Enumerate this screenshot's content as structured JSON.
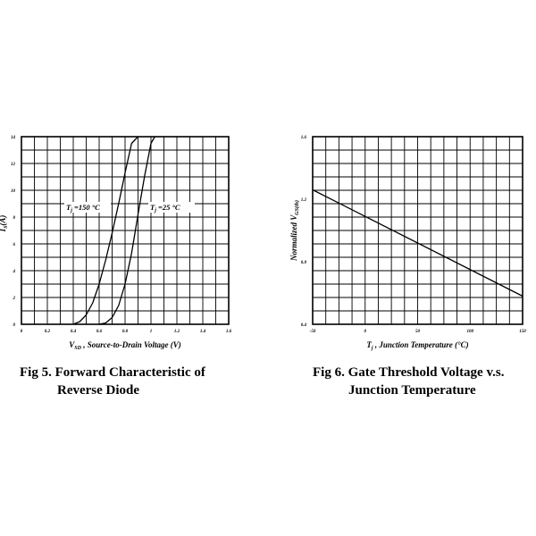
{
  "chart_data": [
    {
      "type": "line",
      "title": "",
      "xlabel": "V",
      "xlabel_sub": "SD",
      "xlabel_rest": " , Source-to-Drain Voltage (V)",
      "ylabel": "I",
      "ylabel_sub": "S",
      "ylabel_rest": "(A)",
      "xlim": [
        0,
        1.6
      ],
      "ylim": [
        0,
        14
      ],
      "x_ticks": [
        "0",
        "0.2",
        "0.4",
        "0.6",
        "0.8",
        "1",
        "1.2",
        "1.4",
        "1.6"
      ],
      "y_ticks": [
        "0",
        "2",
        "4",
        "6",
        "8",
        "10",
        "12",
        "14"
      ],
      "grid": true,
      "series": [
        {
          "name": "T j =150°C",
          "label": "T j =150 °C",
          "x": [
            0.4,
            0.45,
            0.5,
            0.55,
            0.6,
            0.65,
            0.7,
            0.75,
            0.8,
            0.85,
            0.9
          ],
          "y": [
            0.0,
            0.2,
            0.7,
            1.6,
            3.0,
            4.8,
            6.8,
            9.0,
            11.3,
            13.5,
            14.0
          ]
        },
        {
          "name": "T j =25°C",
          "label": "T j =25 °C",
          "x": [
            0.6,
            0.65,
            0.7,
            0.75,
            0.8,
            0.85,
            0.9,
            0.95,
            1.0,
            1.03
          ],
          "y": [
            0.0,
            0.1,
            0.5,
            1.4,
            3.0,
            5.3,
            8.2,
            11.0,
            13.5,
            14.0
          ]
        }
      ]
    },
    {
      "type": "line",
      "title": "",
      "xlabel": "T",
      "xlabel_sub": "j",
      "xlabel_rest": " , Junction Temperature (°C)",
      "ylabel": "Normalized V",
      "ylabel_sub": "GS(th)",
      "ylabel_rest": "",
      "xlim": [
        -50,
        150
      ],
      "ylim": [
        0.4,
        1.6
      ],
      "x_ticks": [
        "-50",
        "0",
        "50",
        "100",
        "150"
      ],
      "y_ticks": [
        "0.4",
        "0.8",
        "1.2",
        "1.6"
      ],
      "grid": true,
      "series": [
        {
          "x": [
            -50,
            150
          ],
          "y": [
            1.26,
            0.58
          ]
        }
      ]
    }
  ],
  "captions": {
    "fig5_line1": "Fig 5. Forward Characteristic of",
    "fig5_line2": "Reverse Diode",
    "fig6_line1": "Fig 6. Gate Threshold Voltage v.s.",
    "fig6_line2": "Junction Temperature"
  }
}
